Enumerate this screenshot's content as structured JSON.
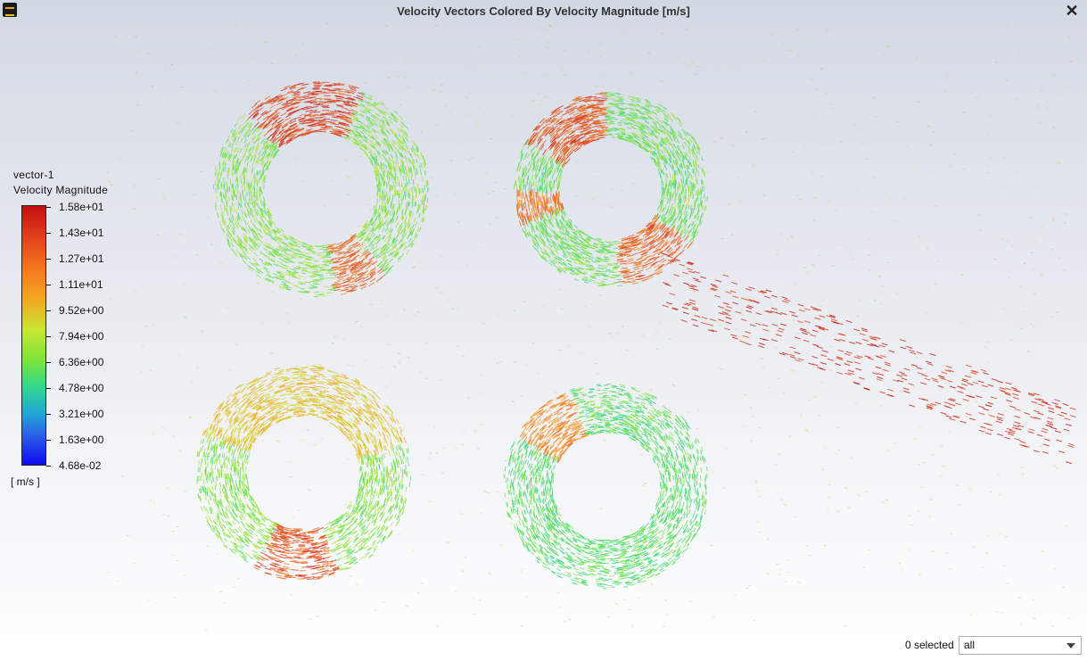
{
  "window": {
    "title": "Velocity Vectors Colored By Velocity Magnitude [m/s]",
    "icon": "ansys-app-icon",
    "close_label": "✕"
  },
  "legend": {
    "name": "vector-1",
    "quantity": "Velocity Magnitude",
    "units": "[ m/s ]",
    "ticks": [
      "1.58e+01",
      "1.43e+01",
      "1.27e+01",
      "1.11e+01",
      "9.52e+00",
      "7.94e+00",
      "6.36e+00",
      "4.78e+00",
      "3.21e+00",
      "1.63e+00",
      "4.68e-02"
    ],
    "colors": [
      "#c11010",
      "#f57a1f",
      "#c8e635",
      "#2fd78f",
      "#22a7d8",
      "#0a0aee"
    ]
  },
  "status": {
    "selected_text": "0 selected",
    "filter_value": "all"
  }
}
